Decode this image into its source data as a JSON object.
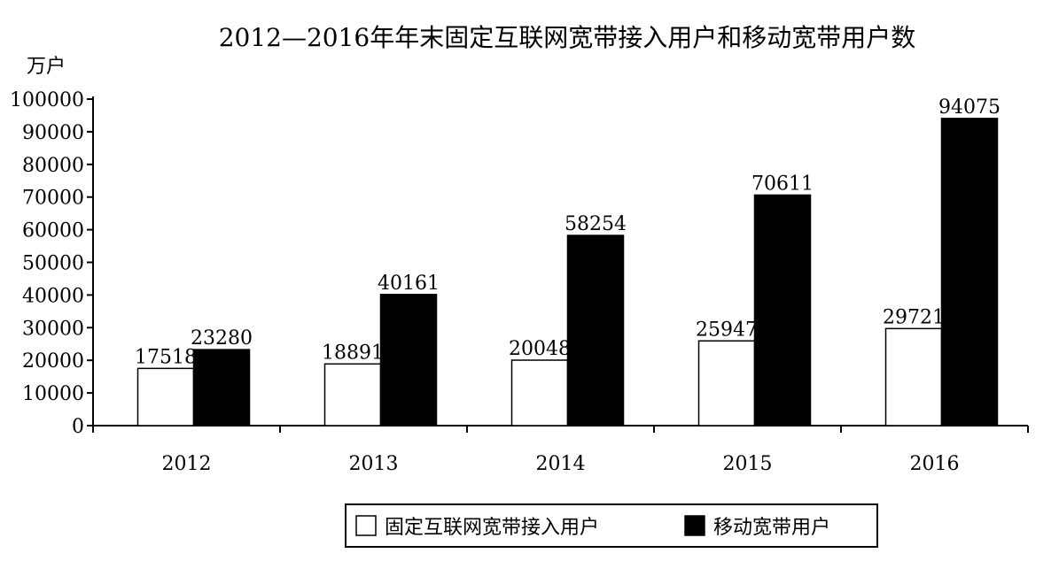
{
  "chart_data": {
    "type": "bar",
    "title": "2012—2016年年末固定互联网宽带接入用户和移动宽带用户数",
    "ylabel": "万户",
    "xlabel": "",
    "categories": [
      "2012",
      "2013",
      "2014",
      "2015",
      "2016"
    ],
    "ylim": [
      0,
      100000
    ],
    "yticks": [
      0,
      10000,
      20000,
      30000,
      40000,
      50000,
      60000,
      70000,
      80000,
      90000,
      100000
    ],
    "series": [
      {
        "name": "固定互联网宽带接入用户",
        "values": [
          17518,
          18891,
          20048,
          25947,
          29721
        ],
        "color": "#ffffff"
      },
      {
        "name": "移动宽带用户",
        "values": [
          23280,
          40161,
          58254,
          70611,
          94075
        ],
        "color": "#000000"
      }
    ],
    "legend_position": "bottom",
    "grid": false
  }
}
